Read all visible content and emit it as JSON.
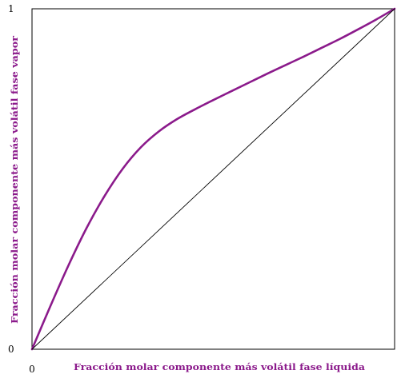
{
  "chart_data": {
    "type": "line",
    "title": "",
    "xlabel": "Fracción molar componente más volátil fase líquida",
    "ylabel": "Fracción molar componente más volátil fase vapor",
    "xlim": [
      0,
      1
    ],
    "ylim": [
      0,
      1
    ],
    "x_ticks": [
      "0"
    ],
    "y_ticks": [
      "0",
      "1"
    ],
    "grid": false,
    "legend": "none",
    "series": [
      {
        "color": "#8b1a8b",
        "x": [
          0,
          0.05,
          0.1,
          0.15,
          0.2,
          0.25,
          0.3,
          0.35,
          0.4,
          0.45,
          0.5,
          0.55,
          0.6,
          0.65,
          0.7,
          0.75,
          0.8,
          0.85,
          0.9,
          0.95,
          1
        ],
        "y": [
          0,
          0.125,
          0.245,
          0.355,
          0.45,
          0.53,
          0.593,
          0.64,
          0.676,
          0.705,
          0.732,
          0.758,
          0.784,
          0.81,
          0.835,
          0.86,
          0.886,
          0.912,
          0.94,
          0.969,
          1
        ]
      },
      {
        "color": "#000000",
        "x": [
          0,
          1
        ],
        "y": [
          0,
          1
        ]
      }
    ],
    "colors": {
      "curve": "#8b1a8b",
      "diagonal": "#000000",
      "axis_title": "#8b1a8b",
      "frame": "#000000"
    }
  }
}
